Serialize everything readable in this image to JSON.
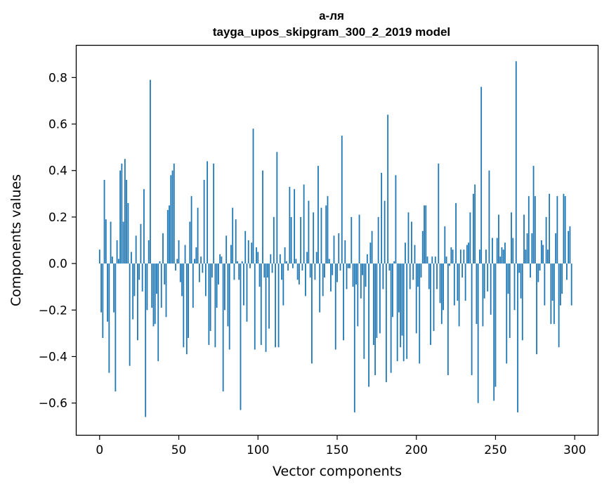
{
  "chart_data": {
    "type": "bar",
    "title": "а-ля",
    "subtitle": "tayga_upos_skipgram_300_2_2019 model",
    "xlabel": "Vector components",
    "ylabel": "Components values",
    "xlim": [
      -15,
      315
    ],
    "ylim": [
      -0.74,
      0.94
    ],
    "xticks": [
      0,
      50,
      100,
      150,
      200,
      250,
      300
    ],
    "xtick_labels": [
      "0",
      "50",
      "100",
      "150",
      "200",
      "250",
      "300"
    ],
    "yticks": [
      -0.6,
      -0.4,
      -0.2,
      0.0,
      0.2,
      0.4,
      0.6,
      0.8
    ],
    "ytick_labels": [
      "−0.6",
      "−0.4",
      "−0.2",
      "0.0",
      "0.2",
      "0.4",
      "0.6",
      "0.8"
    ],
    "bar_color": "#1f77b4",
    "values": [
      0.06,
      -0.21,
      -0.32,
      0.36,
      0.19,
      -0.25,
      -0.47,
      0.18,
      0.03,
      -0.21,
      -0.55,
      0.1,
      0.02,
      0.4,
      0.43,
      0.18,
      0.45,
      0.36,
      0.26,
      -0.44,
      0.05,
      -0.24,
      -0.14,
      0.12,
      -0.33,
      -0.07,
      0.17,
      -0.12,
      0.32,
      -0.66,
      -0.2,
      0.1,
      0.79,
      -0.19,
      -0.27,
      -0.26,
      -0.13,
      -0.42,
      0.01,
      -0.19,
      0.13,
      -0.09,
      -0.23,
      0.23,
      0.25,
      0.38,
      0.4,
      0.43,
      -0.03,
      0.02,
      0.1,
      -0.08,
      -0.14,
      -0.36,
      0.08,
      -0.39,
      -0.32,
      0.18,
      0.29,
      -0.19,
      0.02,
      0.07,
      0.24,
      -0.08,
      0.03,
      -0.04,
      0.36,
      -0.14,
      0.44,
      -0.35,
      -0.29,
      -0.06,
      0.43,
      -0.36,
      -0.19,
      -0.09,
      0.04,
      0.03,
      -0.55,
      -0.2,
      0.12,
      -0.27,
      -0.37,
      0.08,
      0.24,
      -0.07,
      0.19,
      0.01,
      -0.07,
      -0.63,
      0.01,
      -0.18,
      0.14,
      -0.25,
      0.1,
      -0.02,
      0.09,
      0.58,
      -0.37,
      0.07,
      0.05,
      -0.1,
      -0.35,
      0.4,
      -0.06,
      -0.38,
      -0.06,
      -0.28,
      0.04,
      -0.04,
      0.2,
      -0.36,
      0.48,
      -0.36,
      0.04,
      -0.07,
      -0.18,
      0.07,
      0.01,
      -0.03,
      0.33,
      0.2,
      -0.02,
      0.32,
      0.02,
      -0.07,
      -0.09,
      0.2,
      -0.03,
      0.34,
      -0.14,
      0.05,
      0.27,
      -0.06,
      -0.43,
      0.22,
      -0.07,
      0.05,
      0.42,
      -0.21,
      0.24,
      -0.14,
      -0.06,
      0.25,
      0.29,
      0.02,
      -0.12,
      -0.05,
      0.12,
      -0.37,
      -0.08,
      0.13,
      -0.03,
      0.55,
      -0.33,
      0.1,
      -0.11,
      -0.02,
      -0.02,
      0.2,
      -0.1,
      -0.64,
      -0.09,
      -0.27,
      0.21,
      -0.15,
      -0.05,
      -0.41,
      -0.1,
      0.04,
      -0.53,
      0.09,
      0.14,
      -0.35,
      -0.48,
      -0.32,
      0.2,
      -0.3,
      0.39,
      -0.11,
      0.27,
      -0.51,
      0.64,
      -0.03,
      -0.47,
      -0.23,
      0.01,
      0.38,
      -0.42,
      -0.21,
      -0.36,
      -0.31,
      -0.42,
      0.09,
      -0.41,
      0.22,
      -0.11,
      0.18,
      -0.07,
      0.08,
      -0.3,
      -0.1,
      -0.43,
      -0.06,
      0.14,
      0.25,
      0.25,
      0.03,
      -0.11,
      -0.35,
      0.03,
      -0.29,
      0.03,
      -0.11,
      0.43,
      -0.17,
      -0.26,
      -0.2,
      0.16,
      0.03,
      -0.48,
      -0.01,
      0.07,
      0.06,
      -0.18,
      0.26,
      -0.16,
      -0.27,
      0.06,
      -0.06,
      0.06,
      -0.16,
      0.08,
      0.09,
      0.22,
      -0.48,
      0.3,
      0.34,
      -0.26,
      -0.6,
      0.06,
      0.76,
      -0.27,
      -0.15,
      0.06,
      -0.12,
      0.4,
      -0.22,
      0.11,
      -0.59,
      -0.53,
      0.11,
      0.21,
      0.03,
      0.07,
      0.06,
      0.09,
      -0.43,
      -0.13,
      -0.32,
      0.22,
      0.11,
      -0.2,
      0.87,
      -0.64,
      -0.04,
      -0.15,
      -0.33,
      0.21,
      0.06,
      0.13,
      0.29,
      -0.06,
      0.13,
      0.42,
      0.29,
      -0.39,
      -0.08,
      -0.03,
      0.1,
      0.08,
      -0.18,
      0.2,
      0.06,
      0.3,
      -0.26,
      -0.16,
      -0.26,
      0.13,
      0.29,
      -0.36,
      -0.18,
      -0.13,
      0.3,
      0.29,
      -0.07,
      0.14,
      0.16,
      -0.18
    ]
  }
}
